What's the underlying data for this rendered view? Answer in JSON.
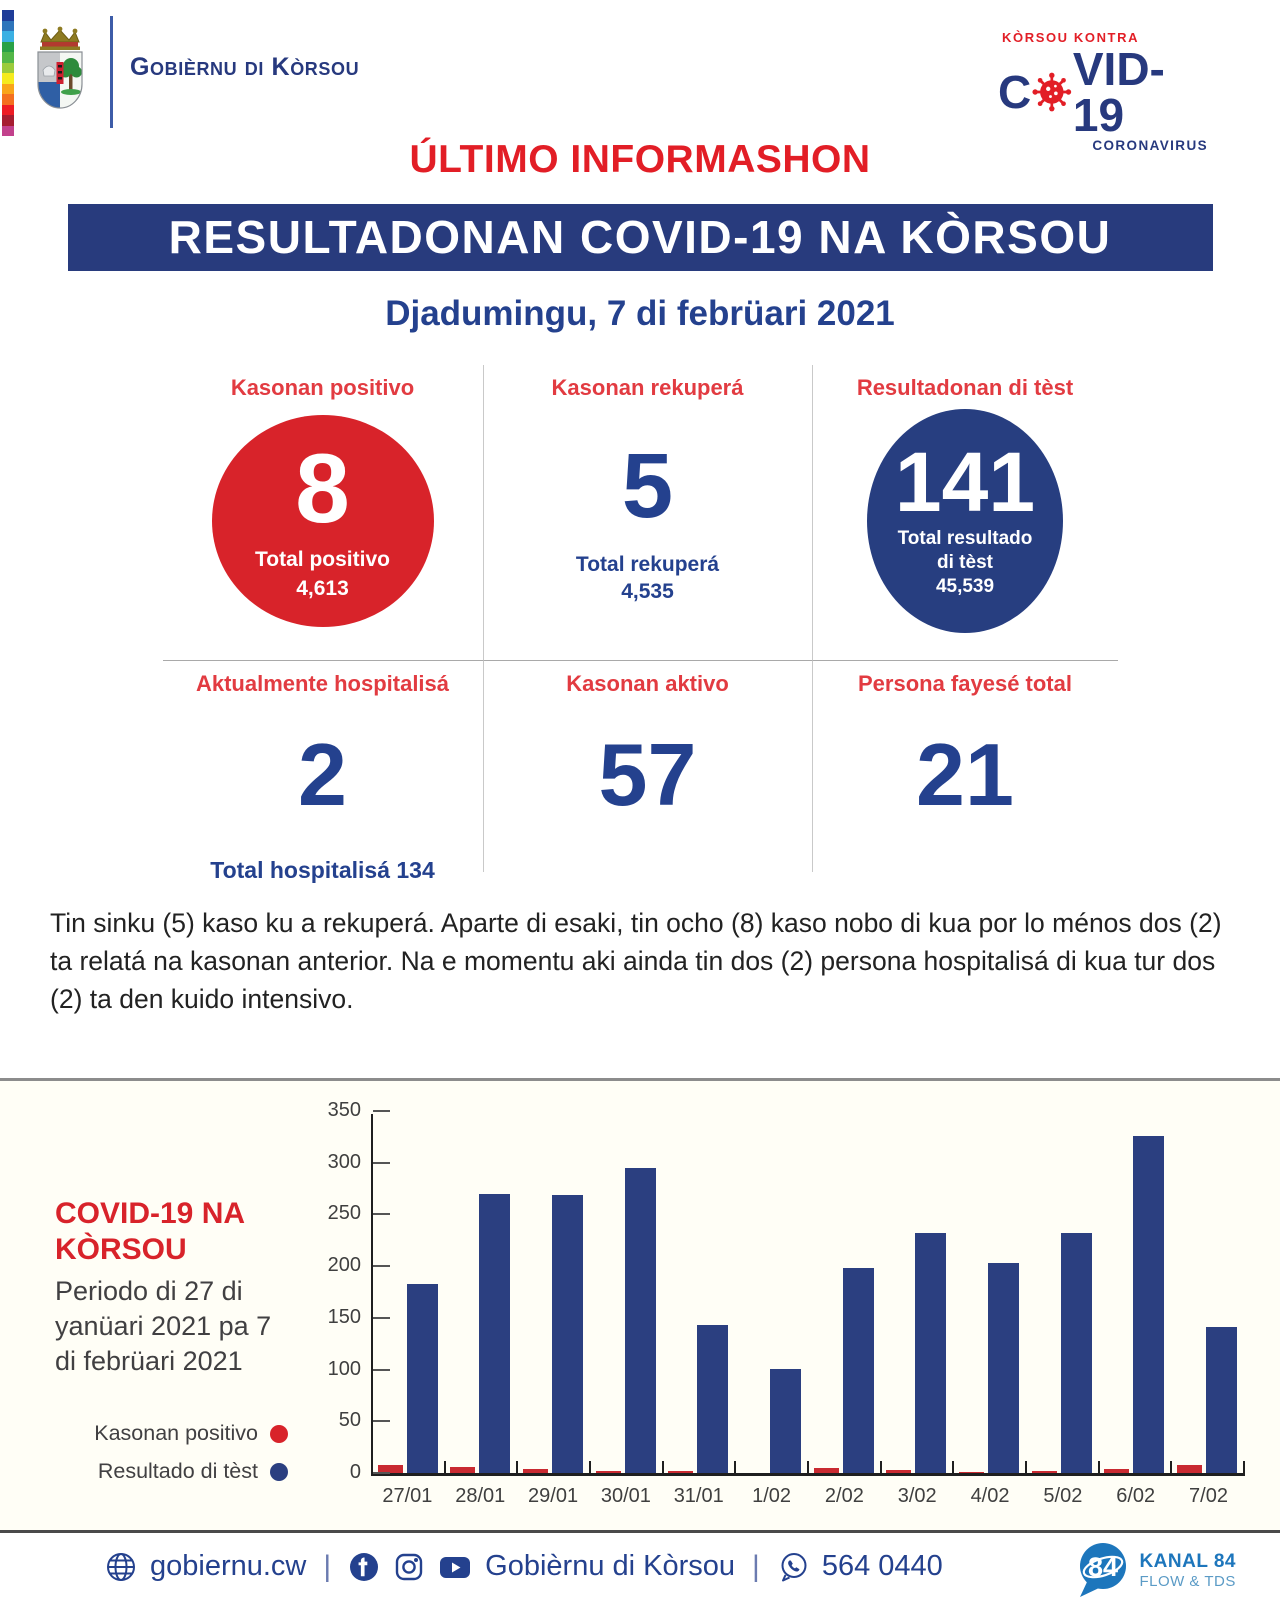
{
  "colors": {
    "navy": "#283B7D",
    "navy_bright": "#24418E",
    "red": "#E21E26",
    "stat_red_circle": "#D8232A",
    "chart_bar_blue": "#2B3F80",
    "chart_bar_red": "#C92A31",
    "kanal_blue": "#1D76BC",
    "chart_bg": "#FFFEF6"
  },
  "header": {
    "gov_name": "Gobièrnu di Kòrsou",
    "flag_strip": [
      "#1F3D99",
      "#2E75BB",
      "#3BB0E3",
      "#29A147",
      "#53B748",
      "#9BCB3C",
      "#F5EB1E",
      "#F9A51A",
      "#F4701F",
      "#ED1C24",
      "#A61D30",
      "#C2418C"
    ],
    "covid_logo": {
      "top": "KÒRSOU KONTRA",
      "main_prefix": "C",
      "main_suffix": "VID-19",
      "sub": "CORONAVIRUS"
    }
  },
  "title": "ÚLTIMO INFORMASHON",
  "banner": "RESULTADONAN COVID-19 NA KÒRSOU",
  "date": "Djadumingu, 7 di febrüari 2021",
  "stats": [
    {
      "label": "Kasonan positivo",
      "value": "8",
      "sub_lines": [
        "Total positivo",
        "4,613"
      ]
    },
    {
      "label": "Kasonan rekuperá",
      "value": "5",
      "sub_lines": [
        "Total rekuperá",
        "4,535"
      ]
    },
    {
      "label": "Resultadonan di tèst",
      "value": "141",
      "sub_lines": [
        "Total resultado",
        "di tèst",
        "45,539"
      ]
    },
    {
      "label": "Aktualmente hospitalisá",
      "value": "2",
      "total_note": "Total hospitalisá 134"
    },
    {
      "label": "Kasonan aktivo",
      "value": "57"
    },
    {
      "label": "Persona fayesé total",
      "value": "21"
    }
  ],
  "paragraph": "Tin sinku (5) kaso ku a rekuperá. Aparte di esaki, tin ocho (8) kaso nobo di kua por lo ménos dos (2) ta relatá na kasonan anterior. Na e momentu aki ainda tin dos (2) persona hospitalisá di kua tur dos (2) ta den kuido intensivo.",
  "chart_data": {
    "type": "bar",
    "title": "COVID-19 NA KÒRSOU",
    "subtitle": "Periodo di 27 di yanüari 2021 pa 7 di febrüari 2021",
    "legend_position": "left",
    "grid": false,
    "legend": [
      {
        "name": "Kasonan positivo",
        "color": "#C92A31"
      },
      {
        "name": "Resultado di tèst",
        "color": "#2B3F80"
      }
    ],
    "categories": [
      "27/01",
      "28/01",
      "29/01",
      "30/01",
      "31/01",
      "1/02",
      "2/02",
      "3/02",
      "4/02",
      "5/02",
      "6/02",
      "7/02"
    ],
    "series": [
      {
        "name": "Kasonan positivo",
        "values": [
          8,
          6,
          4,
          2,
          2,
          0,
          5,
          3,
          1,
          2,
          4,
          8
        ]
      },
      {
        "name": "Resultado di tèst",
        "values": [
          183,
          270,
          269,
          295,
          143,
          101,
          198,
          232,
          203,
          232,
          326,
          141
        ]
      }
    ],
    "ylim": [
      0,
      350
    ],
    "yticks": [
      0,
      50,
      100,
      150,
      200,
      250,
      300,
      350
    ],
    "xlabel": "",
    "ylabel": ""
  },
  "footer": {
    "sep": "|",
    "website": "gobiernu.cw",
    "social_name": "Gobièrnu di Kòrsou",
    "phone": "564 0440",
    "kanal": {
      "number": "84",
      "line1": "KANAL 84",
      "line2": "FLOW & TDS"
    }
  }
}
